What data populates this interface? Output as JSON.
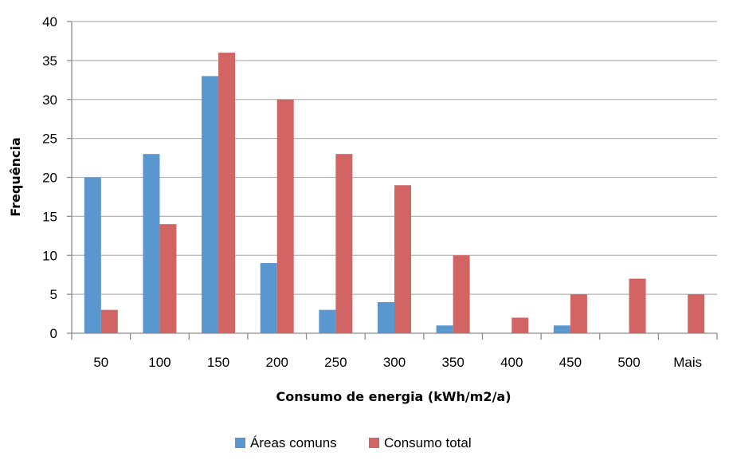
{
  "chart_data": {
    "type": "bar",
    "categories": [
      "50",
      "100",
      "150",
      "200",
      "250",
      "300",
      "350",
      "400",
      "450",
      "500",
      "Mais"
    ],
    "series": [
      {
        "name": "Áreas comuns",
        "color": "#5b97cf",
        "values": [
          20,
          23,
          33,
          9,
          3,
          4,
          1,
          0,
          1,
          0,
          0
        ]
      },
      {
        "name": "Consumo total",
        "color": "#d26464",
        "values": [
          3,
          14,
          36,
          30,
          23,
          19,
          10,
          2,
          5,
          7,
          5
        ]
      }
    ],
    "xlabel": "Consumo de energia (kWh/m2/a)",
    "ylabel": "Frequência",
    "ylim": [
      0,
      40
    ],
    "yticks": [
      0,
      5,
      10,
      15,
      20,
      25,
      30,
      35,
      40
    ],
    "grid": true,
    "legend_position": "bottom"
  }
}
